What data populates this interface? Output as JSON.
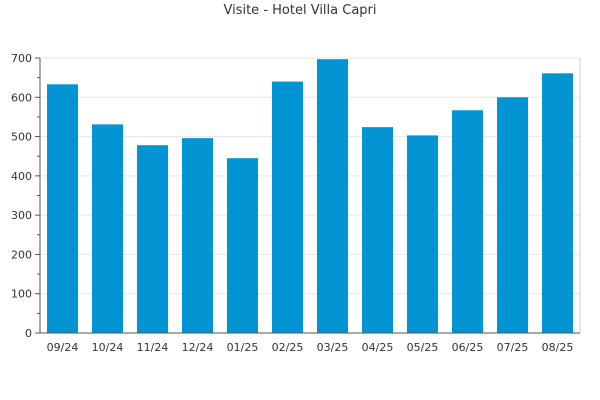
{
  "chart_data": {
    "type": "bar",
    "title": "Visite - Hotel Villa Capri",
    "categories": [
      "09/24",
      "10/24",
      "11/24",
      "12/24",
      "01/25",
      "02/25",
      "03/25",
      "04/25",
      "05/25",
      "06/25",
      "07/25",
      "08/25"
    ],
    "values": [
      633,
      531,
      478,
      496,
      445,
      640,
      697,
      524,
      503,
      567,
      600,
      661
    ],
    "ylim": [
      0,
      700
    ],
    "yticks": [
      0,
      100,
      200,
      300,
      400,
      500,
      600,
      700
    ],
    "xlabel": "",
    "ylabel": "",
    "grid": true,
    "colors": {
      "bar": "#0395d3",
      "grid": "#e6e6e6",
      "axis": "#555555"
    }
  }
}
